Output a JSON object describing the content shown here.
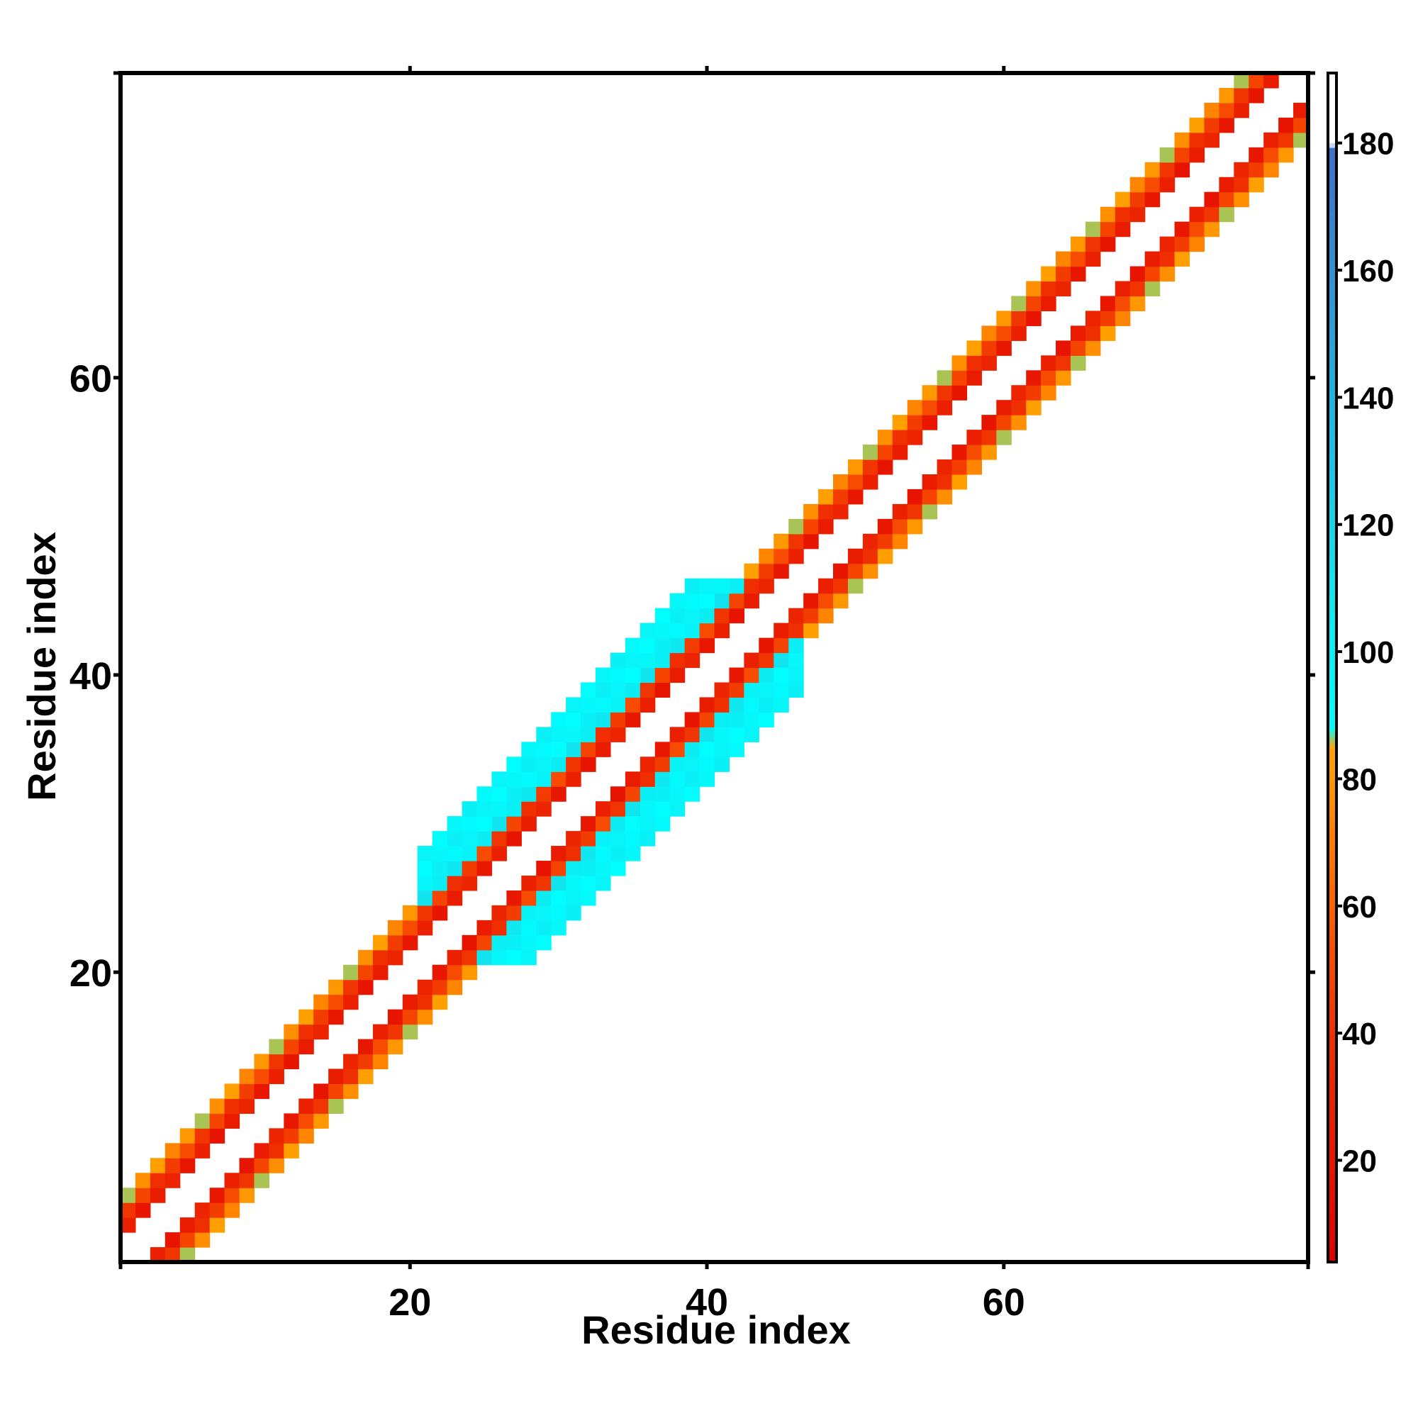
{
  "chart_data": {
    "type": "heatmap",
    "title": "",
    "xlabel": "Residue index",
    "ylabel": "Residue index",
    "xlim": [
      0.5,
      80.5
    ],
    "ylim": [
      0.5,
      80.5
    ],
    "x_ticks": [
      20,
      40,
      60
    ],
    "y_ticks": [
      20,
      40,
      60
    ],
    "grid": false,
    "cell_rule": "cells at 1 < |i-j| <= 4 are coloured; value for offset d is near the offset base value, varied slightly by position; wider cyan band for residues 21-46",
    "bands": [
      {
        "from": 1,
        "to": 80,
        "max_offset": 4,
        "offset_values": {
          "2": 25,
          "3": 45,
          "4": 80
        }
      },
      {
        "from": 21,
        "to": 46,
        "max_offset": 7,
        "offset_values": {
          "2": 25,
          "3": 45,
          "4": 105,
          "5": 95,
          "6": 95,
          "7": 95
        }
      }
    ],
    "colorbar": {
      "min": 4,
      "max": 191,
      "ticks": [
        20,
        40,
        60,
        80,
        100,
        120,
        140,
        160,
        180
      ],
      "stops": [
        {
          "value": 4,
          "color": "#e00000"
        },
        {
          "value": 40,
          "color": "#f03000"
        },
        {
          "value": 70,
          "color": "#ff7a00"
        },
        {
          "value": 85,
          "color": "#ffa500"
        },
        {
          "value": 88,
          "color": "#00ffff"
        },
        {
          "value": 110,
          "color": "#10e6f0"
        },
        {
          "value": 140,
          "color": "#20b4e0"
        },
        {
          "value": 179,
          "color": "#4070c8"
        },
        {
          "value": 180,
          "color": "#ffffff"
        },
        {
          "value": 191,
          "color": "#ffffff"
        }
      ]
    },
    "colors": {
      "red": "#ee1100",
      "orange_red": "#f04000",
      "orange": "#ff7000",
      "amber": "#ffa000",
      "cyan": "#00ffff",
      "cyan_dark": "#18dcec"
    }
  }
}
